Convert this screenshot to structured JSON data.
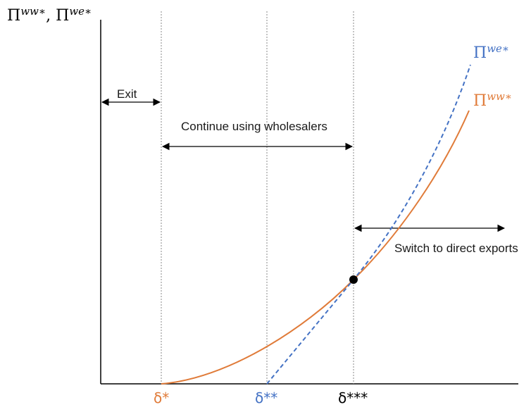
{
  "axis_title": {
    "main": "Π",
    "sup_ww": "ww∗",
    "sep": ", ",
    "sup_we": "we∗"
  },
  "annotations": {
    "exit": "Exit",
    "continue": "Continue using wholesalers",
    "switch": "Switch to direct exports"
  },
  "curves": {
    "we_label": {
      "main": "Π",
      "sup": "we∗"
    },
    "ww_label": {
      "main": "Π",
      "sup": "ww∗"
    }
  },
  "ticks": {
    "d1": "δ*",
    "d2": "δ**",
    "d3": "δ***"
  },
  "colors": {
    "orange": "#e07b39",
    "blue": "#4472c4",
    "axis": "#000000",
    "guide": "#777777"
  }
}
